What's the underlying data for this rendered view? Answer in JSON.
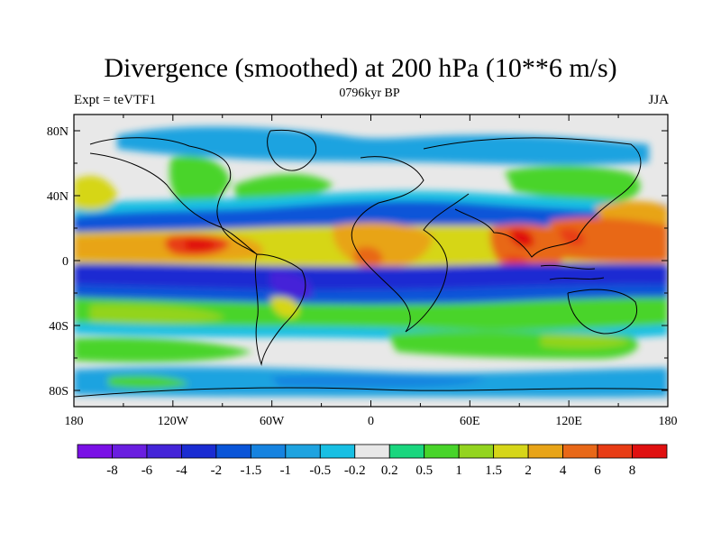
{
  "chart_data": {
    "type": "heatmap",
    "title": "Divergence (smoothed) at 200 hPa (10**6 m/s)",
    "left_label": "Expt = teVTF1",
    "center_label": "0796kyr BP",
    "right_label": "JJA",
    "x_ticks": [
      "180",
      "120W",
      "60W",
      "0",
      "60E",
      "120E",
      "180"
    ],
    "x_tick_values": [
      -180,
      -120,
      -60,
      0,
      60,
      120,
      180
    ],
    "y_ticks": [
      "80N",
      "40N",
      "0",
      "40S",
      "80S"
    ],
    "y_tick_values": [
      80,
      40,
      0,
      -40,
      -80
    ],
    "xlim": [
      -180,
      180
    ],
    "ylim": [
      -90,
      90
    ],
    "colorbar_labels": [
      "-8",
      "-6",
      "-4",
      "-2",
      "-1.5",
      "-1",
      "-0.5",
      "-0.2",
      "0.2",
      "0.5",
      "1",
      "1.5",
      "2",
      "4",
      "6",
      "8"
    ],
    "levels": [
      -8,
      -6,
      -4,
      -2,
      -1.5,
      -1,
      -0.5,
      -0.2,
      0.2,
      0.5,
      1,
      1.5,
      2,
      4,
      6,
      8
    ],
    "colors": [
      "#7a10e6",
      "#6a1ee0",
      "#4424d8",
      "#1a2cd2",
      "#0a55d8",
      "#1683e0",
      "#1ea3e0",
      "#18bfe3",
      "#e8e8e8",
      "#1ad67e",
      "#48d42a",
      "#93d41f",
      "#d6d619",
      "#e8a418",
      "#e86818",
      "#e83c15",
      "#e01010"
    ]
  }
}
